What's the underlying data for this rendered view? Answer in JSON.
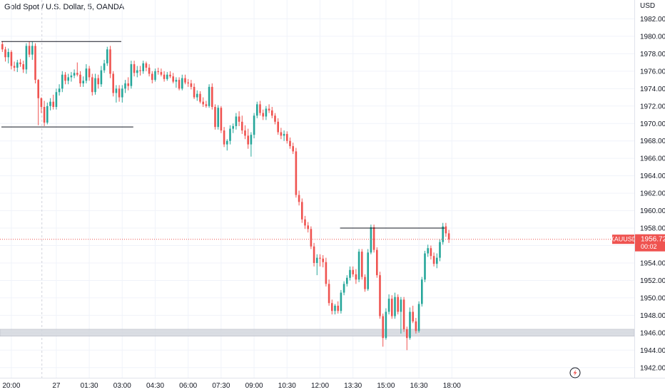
{
  "header": {
    "title": "Gold Spot / U.S. Dollar, 5, OANDA"
  },
  "axis": {
    "currency": "USD"
  },
  "price_label": {
    "symbol": "XAUUSD",
    "price": "1956.720",
    "countdown": "00:02"
  },
  "colors": {
    "up": "#26a69a",
    "down": "#ef5350",
    "grid": "#f0f3fa",
    "level": "#131722",
    "zone": "#d1d4dc",
    "price_line": "#ef5350"
  },
  "icons": {
    "corner": "lightning-icon"
  },
  "chart_data": {
    "type": "candlestick",
    "title": "Gold Spot / U.S. Dollar, 5, OANDA",
    "ylabel": "USD",
    "ylim": [
      1941.0,
      1984.0
    ],
    "y_ticks": [
      1942,
      1944,
      1946,
      1948,
      1950,
      1952,
      1954,
      1956,
      1958,
      1960,
      1962,
      1964,
      1966,
      1968,
      1970,
      1972,
      1974,
      1976,
      1978,
      1980,
      1982
    ],
    "x_ticks": [
      {
        "label": "20:00",
        "i": 3
      },
      {
        "label": "27",
        "i": 18
      },
      {
        "label": "01:30",
        "i": 29
      },
      {
        "label": "03:00",
        "i": 40
      },
      {
        "label": "04:30",
        "i": 51
      },
      {
        "label": "06:00",
        "i": 62
      },
      {
        "label": "07:30",
        "i": 73
      },
      {
        "label": "09:00",
        "i": 84
      },
      {
        "label": "10:30",
        "i": 95
      },
      {
        "label": "12:00",
        "i": 106
      },
      {
        "label": "13:30",
        "i": 117
      },
      {
        "label": "15:00",
        "i": 128
      },
      {
        "label": "16:30",
        "i": 139
      },
      {
        "label": "18:00",
        "i": 150
      }
    ],
    "last_price": 1956.72,
    "level_lines": [
      {
        "price": 1979.4,
        "i_from": 0,
        "i_to": 40
      },
      {
        "price": 1969.6,
        "i_from": 0,
        "i_to": 44
      },
      {
        "price": 1958.0,
        "i_from": 113,
        "i_to": 148
      }
    ],
    "zone": {
      "from": 1945.6,
      "to": 1946.4
    },
    "candles": [
      [
        1979.1,
        1979.4,
        1978.2,
        1978.5
      ],
      [
        1978.5,
        1978.8,
        1977.1,
        1977.6
      ],
      [
        1977.6,
        1978.6,
        1976.9,
        1978.2
      ],
      [
        1978.2,
        1978.4,
        1976.2,
        1976.6
      ],
      [
        1976.6,
        1977.1,
        1976.0,
        1976.4
      ],
      [
        1976.4,
        1977.3,
        1975.9,
        1977.0
      ],
      [
        1977.0,
        1977.4,
        1976.5,
        1976.8
      ],
      [
        1976.8,
        1977.2,
        1975.8,
        1976.2
      ],
      [
        1976.2,
        1979.2,
        1975.7,
        1978.9
      ],
      [
        1978.9,
        1979.4,
        1977.6,
        1977.9
      ],
      [
        1977.9,
        1979.4,
        1977.3,
        1978.9
      ],
      [
        1978.9,
        1979.2,
        1974.6,
        1975.0
      ],
      [
        1975.0,
        1975.1,
        1969.8,
        1972.9
      ],
      [
        1972.9,
        1973.0,
        1971.2,
        1971.9
      ],
      [
        1971.9,
        1972.6,
        1969.7,
        1970.1
      ],
      [
        1970.1,
        1972.4,
        1969.9,
        1972.0
      ],
      [
        1972.0,
        1972.9,
        1971.5,
        1972.5
      ],
      [
        1972.5,
        1973.3,
        1971.6,
        1971.9
      ],
      [
        1971.9,
        1974.0,
        1971.6,
        1973.6
      ],
      [
        1973.6,
        1974.5,
        1973.2,
        1974.0
      ],
      [
        1974.0,
        1976.0,
        1973.6,
        1975.6
      ],
      [
        1975.6,
        1975.9,
        1974.5,
        1974.9
      ],
      [
        1974.9,
        1975.7,
        1974.5,
        1975.3
      ],
      [
        1975.3,
        1975.9,
        1974.8,
        1975.5
      ],
      [
        1975.5,
        1976.2,
        1975.2,
        1975.8
      ],
      [
        1975.8,
        1977.0,
        1975.4,
        1975.6
      ],
      [
        1975.6,
        1976.0,
        1974.2,
        1974.6
      ],
      [
        1974.6,
        1975.4,
        1974.2,
        1974.9
      ],
      [
        1974.9,
        1976.8,
        1974.6,
        1976.3
      ],
      [
        1976.3,
        1976.6,
        1974.9,
        1975.3
      ],
      [
        1975.3,
        1975.7,
        1973.2,
        1973.6
      ],
      [
        1973.6,
        1975.7,
        1973.3,
        1975.2
      ],
      [
        1975.2,
        1975.6,
        1974.0,
        1974.5
      ],
      [
        1974.5,
        1976.6,
        1974.2,
        1976.1
      ],
      [
        1976.1,
        1977.3,
        1975.8,
        1976.9
      ],
      [
        1976.9,
        1978.8,
        1976.6,
        1978.5
      ],
      [
        1978.5,
        1978.9,
        1975.2,
        1975.7
      ],
      [
        1975.7,
        1976.0,
        1973.1,
        1973.5
      ],
      [
        1973.5,
        1974.4,
        1972.4,
        1974.0
      ],
      [
        1974.0,
        1974.4,
        1972.5,
        1973.0
      ],
      [
        1973.0,
        1974.4,
        1972.4,
        1974.0
      ],
      [
        1974.0,
        1975.0,
        1973.5,
        1974.6
      ],
      [
        1974.6,
        1975.3,
        1973.8,
        1974.3
      ],
      [
        1974.3,
        1977.2,
        1974.0,
        1976.8
      ],
      [
        1976.8,
        1977.2,
        1975.4,
        1975.8
      ],
      [
        1975.8,
        1976.6,
        1975.3,
        1976.1
      ],
      [
        1976.1,
        1976.6,
        1975.5,
        1976.0
      ],
      [
        1976.0,
        1977.2,
        1975.7,
        1976.9
      ],
      [
        1976.9,
        1977.1,
        1976.0,
        1976.4
      ],
      [
        1976.4,
        1976.8,
        1975.4,
        1975.7
      ],
      [
        1975.7,
        1976.0,
        1974.6,
        1975.0
      ],
      [
        1975.0,
        1976.3,
        1974.8,
        1976.0
      ],
      [
        1976.0,
        1976.4,
        1975.6,
        1975.9
      ],
      [
        1975.9,
        1976.3,
        1975.4,
        1975.6
      ],
      [
        1975.6,
        1976.0,
        1974.8,
        1975.1
      ],
      [
        1975.1,
        1975.9,
        1974.9,
        1975.6
      ],
      [
        1975.6,
        1976.0,
        1975.2,
        1975.4
      ],
      [
        1975.4,
        1975.8,
        1974.6,
        1974.8
      ],
      [
        1974.8,
        1975.3,
        1974.1,
        1975.0
      ],
      [
        1975.0,
        1975.3,
        1973.8,
        1974.0
      ],
      [
        1974.0,
        1975.6,
        1973.8,
        1975.2
      ],
      [
        1975.2,
        1975.6,
        1974.5,
        1974.7
      ],
      [
        1974.7,
        1975.1,
        1974.2,
        1974.6
      ],
      [
        1974.6,
        1975.0,
        1973.9,
        1974.2
      ],
      [
        1974.2,
        1974.6,
        1972.8,
        1973.0
      ],
      [
        1973.0,
        1973.8,
        1972.6,
        1973.4
      ],
      [
        1973.4,
        1973.7,
        1972.3,
        1972.5
      ],
      [
        1972.5,
        1973.0,
        1971.9,
        1972.2
      ],
      [
        1972.2,
        1972.6,
        1971.8,
        1972.0
      ],
      [
        1972.0,
        1974.5,
        1971.8,
        1974.2
      ],
      [
        1974.2,
        1974.6,
        1971.6,
        1971.9
      ],
      [
        1971.9,
        1972.2,
        1969.3,
        1969.6
      ],
      [
        1969.6,
        1972.1,
        1969.3,
        1971.8
      ],
      [
        1971.8,
        1972.0,
        1968.9,
        1969.2
      ],
      [
        1969.2,
        1969.6,
        1967.3,
        1967.6
      ],
      [
        1967.6,
        1968.2,
        1966.9,
        1968.0
      ],
      [
        1968.0,
        1969.8,
        1967.6,
        1969.4
      ],
      [
        1969.4,
        1970.0,
        1968.9,
        1969.7
      ],
      [
        1969.7,
        1971.2,
        1969.3,
        1970.8
      ],
      [
        1970.8,
        1971.4,
        1969.7,
        1970.2
      ],
      [
        1970.2,
        1970.9,
        1968.8,
        1969.2
      ],
      [
        1969.2,
        1969.8,
        1968.2,
        1968.6
      ],
      [
        1968.6,
        1969.4,
        1967.1,
        1967.6
      ],
      [
        1967.6,
        1969.0,
        1966.2,
        1968.7
      ],
      [
        1968.7,
        1971.2,
        1968.3,
        1970.9
      ],
      [
        1970.9,
        1972.5,
        1970.6,
        1972.2
      ],
      [
        1972.2,
        1972.6,
        1970.9,
        1971.2
      ],
      [
        1971.2,
        1971.6,
        1970.4,
        1970.8
      ],
      [
        1970.8,
        1972.0,
        1970.4,
        1971.7
      ],
      [
        1971.7,
        1972.2,
        1971.2,
        1971.5
      ],
      [
        1971.5,
        1971.9,
        1970.6,
        1970.9
      ],
      [
        1970.9,
        1971.2,
        1969.9,
        1970.2
      ],
      [
        1970.2,
        1970.6,
        1968.7,
        1969.0
      ],
      [
        1969.0,
        1969.5,
        1968.2,
        1968.6
      ],
      [
        1968.6,
        1969.2,
        1968.0,
        1968.8
      ],
      [
        1968.8,
        1969.1,
        1967.7,
        1968.0
      ],
      [
        1968.0,
        1968.4,
        1967.1,
        1967.4
      ],
      [
        1967.4,
        1967.8,
        1966.5,
        1966.8
      ],
      [
        1966.8,
        1967.2,
        1961.5,
        1961.8
      ],
      [
        1961.8,
        1962.3,
        1960.6,
        1961.0
      ],
      [
        1961.0,
        1961.4,
        1958.6,
        1959.0
      ],
      [
        1959.0,
        1959.4,
        1957.9,
        1958.3
      ],
      [
        1958.3,
        1958.7,
        1957.5,
        1957.9
      ],
      [
        1957.9,
        1958.2,
        1955.6,
        1955.9
      ],
      [
        1955.9,
        1956.3,
        1953.6,
        1954.0
      ],
      [
        1954.0,
        1955.0,
        1952.6,
        1954.6
      ],
      [
        1954.6,
        1955.0,
        1953.6,
        1954.5
      ],
      [
        1954.5,
        1954.9,
        1953.5,
        1954.1
      ],
      [
        1954.1,
        1954.6,
        1951.3,
        1951.6
      ],
      [
        1951.6,
        1952.1,
        1949.1,
        1949.4
      ],
      [
        1949.4,
        1949.8,
        1948.1,
        1948.5
      ],
      [
        1948.5,
        1949.3,
        1948.1,
        1949.1
      ],
      [
        1949.1,
        1949.6,
        1948.2,
        1948.5
      ],
      [
        1948.5,
        1950.9,
        1948.2,
        1950.6
      ],
      [
        1950.6,
        1951.9,
        1950.3,
        1951.6
      ],
      [
        1951.6,
        1952.6,
        1951.3,
        1952.3
      ],
      [
        1952.3,
        1953.6,
        1952.0,
        1953.2
      ],
      [
        1953.2,
        1953.6,
        1952.4,
        1952.7
      ],
      [
        1952.7,
        1953.3,
        1951.6,
        1952.1
      ],
      [
        1952.1,
        1955.6,
        1951.8,
        1955.3
      ],
      [
        1955.3,
        1955.6,
        1952.1,
        1952.4
      ],
      [
        1952.4,
        1952.7,
        1950.7,
        1951.0
      ],
      [
        1951.0,
        1955.6,
        1950.8,
        1955.2
      ],
      [
        1955.2,
        1958.4,
        1955.0,
        1958.1
      ],
      [
        1958.1,
        1958.4,
        1955.2,
        1955.5
      ],
      [
        1955.5,
        1955.8,
        1952.3,
        1952.6
      ],
      [
        1952.6,
        1953.0,
        1947.6,
        1947.9
      ],
      [
        1947.9,
        1948.2,
        1944.4,
        1945.4
      ],
      [
        1945.4,
        1948.8,
        1945.2,
        1948.4
      ],
      [
        1948.4,
        1950.4,
        1948.1,
        1949.9
      ],
      [
        1949.9,
        1950.3,
        1947.6,
        1947.9
      ],
      [
        1947.9,
        1950.6,
        1947.6,
        1950.1
      ],
      [
        1950.1,
        1950.4,
        1948.1,
        1948.4
      ],
      [
        1948.4,
        1950.1,
        1945.9,
        1949.8
      ],
      [
        1949.8,
        1950.1,
        1946.1,
        1946.4
      ],
      [
        1946.4,
        1946.7,
        1944.0,
        1945.4
      ],
      [
        1945.4,
        1948.9,
        1945.2,
        1948.4
      ],
      [
        1948.4,
        1949.1,
        1947.1,
        1947.3
      ],
      [
        1947.3,
        1947.7,
        1945.9,
        1946.2
      ],
      [
        1946.2,
        1949.6,
        1946.0,
        1949.3
      ],
      [
        1949.3,
        1952.4,
        1949.0,
        1952.1
      ],
      [
        1952.1,
        1955.4,
        1951.8,
        1955.1
      ],
      [
        1955.1,
        1956.1,
        1954.7,
        1955.7
      ],
      [
        1955.7,
        1956.0,
        1954.4,
        1954.8
      ],
      [
        1954.8,
        1955.2,
        1953.6,
        1953.9
      ],
      [
        1953.9,
        1955.1,
        1953.4,
        1954.6
      ],
      [
        1954.6,
        1956.7,
        1954.2,
        1956.4
      ],
      [
        1956.4,
        1958.6,
        1956.1,
        1958.2
      ],
      [
        1958.2,
        1958.6,
        1957.0,
        1957.4
      ],
      [
        1957.4,
        1957.8,
        1956.3,
        1956.72
      ]
    ]
  }
}
